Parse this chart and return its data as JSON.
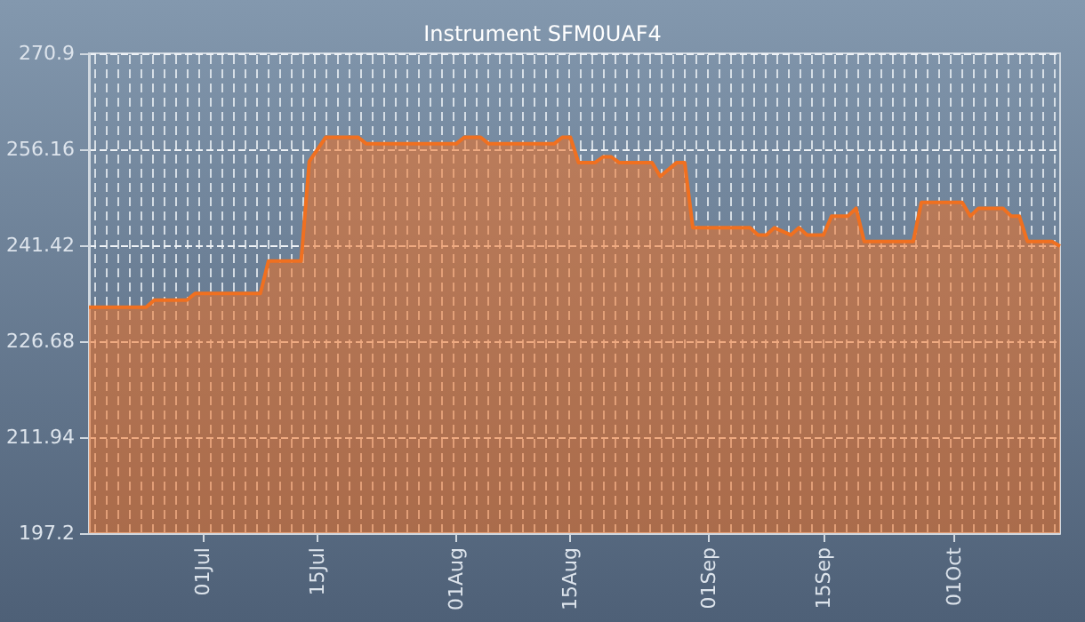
{
  "chart_data": {
    "type": "area",
    "title": "Instrument SFM0UAF4",
    "x": [
      "--06-17",
      "--06-24",
      "--06-25",
      "--06-29",
      "--06-30",
      "--07-08",
      "--07-09",
      "--07-13",
      "--07-14",
      "--07-16",
      "--07-20",
      "--07-21",
      "--08-01",
      "--08-02",
      "--08-04",
      "--08-05",
      "--08-13",
      "--08-14",
      "--08-15",
      "--08-16",
      "--08-18",
      "--08-19",
      "--08-20",
      "--08-21",
      "--08-25",
      "--08-26",
      "--08-28",
      "--08-29",
      "--08-30",
      "--09-06",
      "--09-07",
      "--09-08",
      "--09-09",
      "--09-11",
      "--09-12",
      "--09-13",
      "--09-15",
      "--09-16",
      "--09-18",
      "--09-19",
      "--09-20",
      "--09-26",
      "--09-27",
      "--10-02",
      "--10-03",
      "--10-04",
      "--10-07",
      "--10-08",
      "--10-09",
      "--10-10",
      "--10-13",
      "--10-14"
    ],
    "series": [
      {
        "color": "#f07020",
        "values": [
          231.9,
          231.9,
          233.0,
          233.0,
          234.0,
          234.0,
          239.0,
          239.0,
          254.3,
          258.0,
          258.0,
          257.0,
          257.0,
          258.0,
          258.0,
          257.0,
          257.0,
          258.0,
          258.0,
          254.1,
          254.1,
          255.0,
          255.0,
          254.1,
          254.1,
          252.0,
          254.1,
          254.1,
          244.1,
          244.1,
          243.0,
          243.0,
          244.1,
          243.0,
          244.1,
          243.0,
          243.0,
          245.9,
          245.9,
          247.1,
          242.0,
          242.0,
          248.0,
          248.0,
          245.9,
          247.1,
          247.1,
          245.9,
          245.9,
          242.0,
          242.0,
          241.3
        ]
      }
    ],
    "xlim": [
      "--06-17",
      "--10-14"
    ],
    "xticks": [
      {
        "value": "--07-01",
        "label": "01Jul"
      },
      {
        "value": "--07-15",
        "label": "15Jul"
      },
      {
        "value": "--08-01",
        "label": "01Aug"
      },
      {
        "value": "--08-15",
        "label": "15Aug"
      },
      {
        "value": "--09-01",
        "label": "01Sep"
      },
      {
        "value": "--09-15",
        "label": "15Sep"
      },
      {
        "value": "--10-01",
        "label": "01Oct"
      }
    ],
    "ylim": [
      197.2,
      270.9
    ],
    "yticks": [
      197.2,
      211.94,
      226.68,
      241.42,
      256.16,
      270.9
    ],
    "grid": "y",
    "marker": "none",
    "line_style": "solid"
  }
}
